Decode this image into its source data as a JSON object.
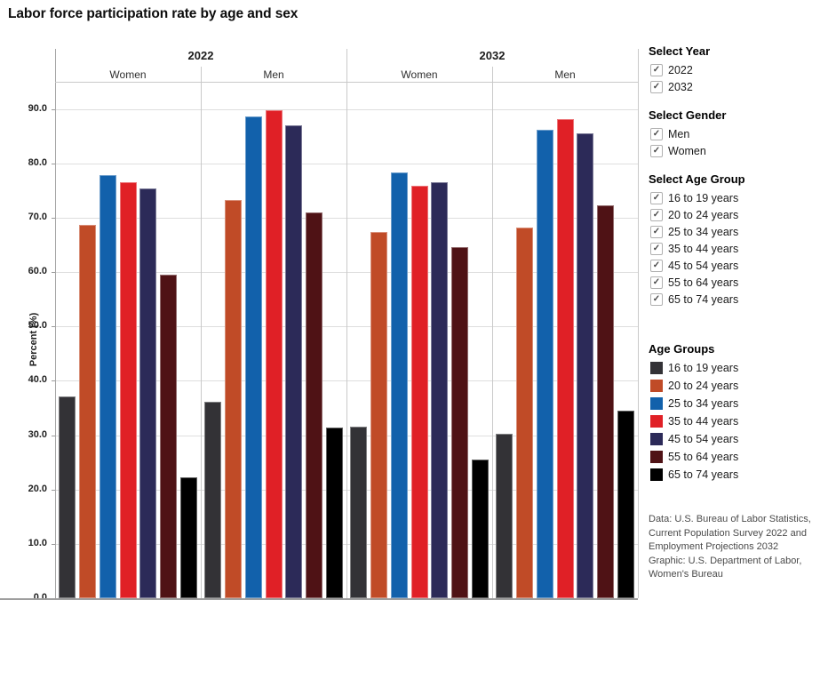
{
  "window": {
    "title": "Labor force participation rate by age and sex"
  },
  "filters": {
    "year": {
      "title": "Select Year",
      "options": [
        {
          "label": "2022",
          "checked": true
        },
        {
          "label": "2032",
          "checked": true
        }
      ]
    },
    "gender": {
      "title": "Select Gender",
      "options": [
        {
          "label": "Men",
          "checked": true
        },
        {
          "label": "Women",
          "checked": true
        }
      ]
    },
    "age_group": {
      "title": "Select Age Group",
      "options": [
        {
          "label": "16 to 19 years",
          "checked": true
        },
        {
          "label": "20 to 24 years",
          "checked": true
        },
        {
          "label": "25 to 34 years",
          "checked": true
        },
        {
          "label": "35 to 44 years",
          "checked": true
        },
        {
          "label": "45 to 54 years",
          "checked": true
        },
        {
          "label": "55 to 64 years",
          "checked": true
        },
        {
          "label": "65 to 74 years",
          "checked": true
        }
      ]
    }
  },
  "legend": {
    "title": "Age Groups",
    "items": [
      {
        "label": "16 to 19 years",
        "color": "#333236"
      },
      {
        "label": "20 to 24 years",
        "color": "#c04b27"
      },
      {
        "label": "25 to 34 years",
        "color": "#1261ab"
      },
      {
        "label": "35 to 44 years",
        "color": "#e02026"
      },
      {
        "label": "45 to 54 years",
        "color": "#2c2a58"
      },
      {
        "label": "55 to 64 years",
        "color": "#4f1215"
      },
      {
        "label": "65 to 74 years",
        "color": "#000000"
      }
    ]
  },
  "footer": {
    "lines": [
      "Data: U.S. Bureau of Labor Statistics,",
      "Current Population Survey 2022 and",
      "Employment Projections 2032",
      "Graphic: U.S. Department of Labor,",
      "Women's Bureau"
    ]
  },
  "chart_data": {
    "type": "bar",
    "title": "Labor force participation rate by age and sex",
    "ylabel": "Percent (%)",
    "ylim": [
      0,
      95
    ],
    "ytick_step": 10,
    "ytick_labels": [
      "0.0",
      "10.0",
      "20.0",
      "30.0",
      "40.0",
      "50.0",
      "60.0",
      "70.0",
      "80.0",
      "90.0"
    ],
    "grid": true,
    "legend_position": "right",
    "categories": [
      "16 to 19 years",
      "20 to 24 years",
      "25 to 34 years",
      "35 to 44 years",
      "45 to 54 years",
      "55 to 64 years",
      "65 to 74 years"
    ],
    "colors": [
      "#333236",
      "#c04b27",
      "#1261ab",
      "#e02026",
      "#2c2a58",
      "#4f1215",
      "#000000"
    ],
    "panels": [
      {
        "year": "2022",
        "columns": [
          "Women",
          "Men"
        ]
      },
      {
        "year": "2032",
        "columns": [
          "Women",
          "Men"
        ]
      }
    ],
    "groups": [
      {
        "year": "2022",
        "sex": "Women",
        "values": [
          37.1,
          68.6,
          77.8,
          76.5,
          75.3,
          59.5,
          22.2
        ]
      },
      {
        "year": "2022",
        "sex": "Men",
        "values": [
          36.1,
          73.2,
          88.7,
          89.7,
          87.0,
          71.0,
          31.4
        ]
      },
      {
        "year": "2032",
        "sex": "Women",
        "values": [
          31.6,
          67.3,
          78.3,
          75.9,
          76.5,
          64.6,
          25.5
        ]
      },
      {
        "year": "2032",
        "sex": "Men",
        "values": [
          30.2,
          68.2,
          86.2,
          88.1,
          85.5,
          72.3,
          34.5
        ]
      }
    ]
  }
}
